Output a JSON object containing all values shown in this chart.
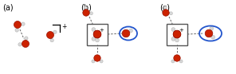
{
  "bg_color": "#ffffff",
  "label_a": "(a)",
  "label_b": "(b)",
  "label_c": "(c)",
  "label_fontsize": 7,
  "oxygen_color": "#cc2200",
  "hydrogen_color": "#d8d8d8",
  "bond_color": "#888888",
  "dashed_color": "#666666",
  "box_color": "#555555",
  "circle_color_b": "#2255cc",
  "circle_color_c": "#2255cc"
}
